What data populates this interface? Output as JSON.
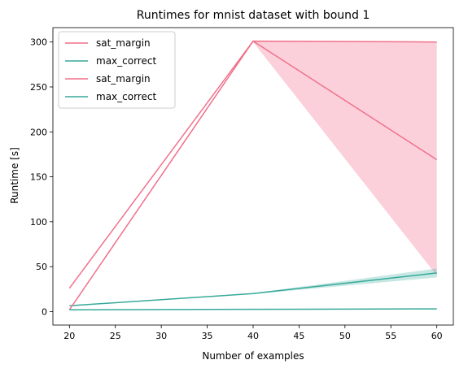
{
  "chart_data": {
    "type": "line",
    "title": "Runtimes for mnist dataset with bound 1",
    "xlabel": "Number of examples",
    "ylabel": "Runtime [s]",
    "xlim": [
      18.2,
      61.8
    ],
    "ylim": [
      -15,
      316
    ],
    "x_ticks": [
      20,
      25,
      30,
      35,
      40,
      45,
      50,
      55,
      60
    ],
    "y_ticks": [
      0,
      50,
      100,
      150,
      200,
      250,
      300
    ],
    "grid": false,
    "legend_position": "top-left",
    "legend": [
      {
        "label": "sat_margin",
        "color": "#f0718b"
      },
      {
        "label": "max_correct",
        "color": "#36a99a"
      },
      {
        "label": "sat_margin",
        "color": "#f0718b"
      },
      {
        "label": "max_correct",
        "color": "#36a99a"
      }
    ],
    "bands": [
      {
        "x": [
          40,
          60
        ],
        "lower": [
          300,
          40
        ],
        "upper": [
          301,
          300
        ],
        "color": "#f9b3c3",
        "opacity": 0.62
      },
      {
        "x": [
          40,
          60
        ],
        "lower": [
          19.5,
          38
        ],
        "upper": [
          20.5,
          48
        ],
        "color": "#36a99a",
        "opacity": 0.28
      }
    ],
    "series": [
      {
        "x": [
          20,
          40,
          60
        ],
        "y": [
          26,
          301,
          300
        ],
        "color": "#f0718b"
      },
      {
        "x": [
          20,
          40,
          60
        ],
        "y": [
          6.5,
          20,
          43
        ],
        "color": "#36a99a"
      },
      {
        "x": [
          20,
          40,
          60
        ],
        "y": [
          2,
          301,
          169
        ],
        "color": "#f0718b"
      },
      {
        "x": [
          20,
          40,
          60
        ],
        "y": [
          2,
          2.5,
          3
        ],
        "color": "#36a99a"
      }
    ]
  }
}
